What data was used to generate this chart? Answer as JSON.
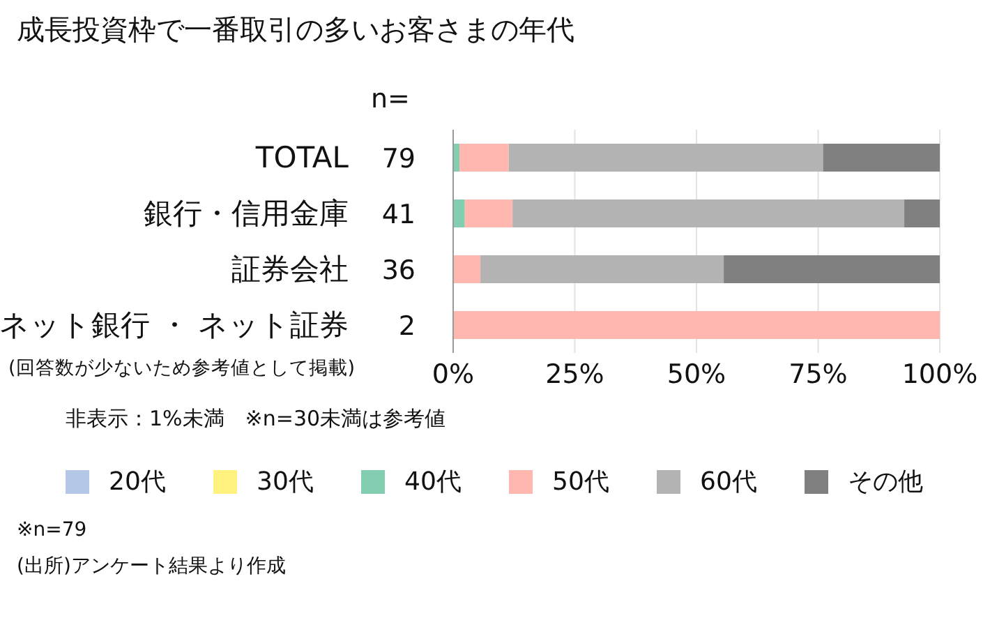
{
  "chart_data": {
    "type": "bar",
    "orientation": "horizontal",
    "stacked": true,
    "title": "成長投資枠で一番取引の多いお客さまの年代",
    "categories": [
      "TOTAL",
      "銀行・信用金庫",
      "証券会社",
      "ネット銀行 ・ ネット証券"
    ],
    "y2_categories": [
      "79",
      "41",
      "36",
      "2"
    ],
    "series": [
      {
        "name": "20代",
        "color": "#b4c7e7",
        "values": [
          0,
          0,
          0,
          0
        ]
      },
      {
        "name": "30代",
        "color": "#fff27f",
        "values": [
          0,
          0,
          0,
          0
        ]
      },
      {
        "name": "40代",
        "color": "#83ceb0",
        "values": [
          1.3,
          2.4,
          0,
          0
        ]
      },
      {
        "name": "50代",
        "color": "#ffb7b0",
        "values": [
          10.1,
          9.8,
          5.6,
          100
        ]
      },
      {
        "name": "60代",
        "color": "#b3b3b3",
        "values": [
          64.6,
          80.5,
          50,
          0
        ]
      },
      {
        "name": "その他",
        "color": "#808080",
        "values": [
          24.0,
          7.3,
          44.4,
          0
        ]
      }
    ],
    "xlim": [
      0,
      100
    ],
    "xticks": [
      {
        "value": 0,
        "label": "0%"
      },
      {
        "value": 25,
        "label": "25%"
      },
      {
        "value": 50,
        "label": "50%"
      },
      {
        "value": 75,
        "label": "75%"
      },
      {
        "value": 100,
        "label": "100%"
      }
    ],
    "grid": "x",
    "legend": "bottom",
    "annotations": [
      "n=",
      "(回答数が少ないため参考値として掲載)",
      "非表示：1%未満　※n=30未満は参考値",
      "※n=79",
      "(出所)アンケート結果より作成"
    ]
  }
}
